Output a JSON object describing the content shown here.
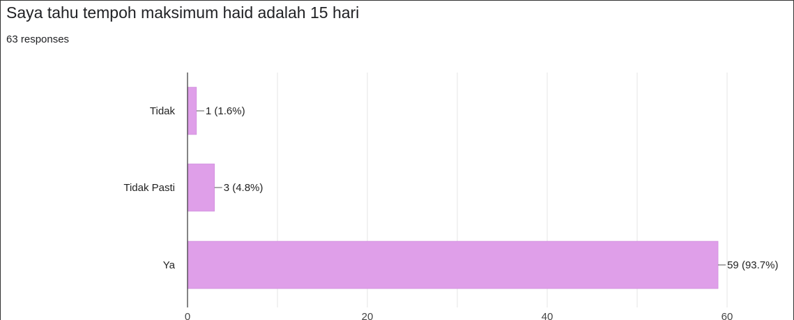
{
  "question": {
    "title": "Saya tahu tempoh maksimum haid adalah 15 hari",
    "responses": "63 responses"
  },
  "colors": {
    "bar": "#df9fe9",
    "bar_edge": "#c67fd4",
    "grid": "#e6e6e6",
    "axis": "#333333"
  },
  "chart_data": {
    "type": "bar",
    "orientation": "horizontal",
    "categories": [
      "Tidak",
      "Tidak Pasti",
      "Ya"
    ],
    "values": [
      1,
      3,
      59
    ],
    "data_labels": [
      "1 (1.6%)",
      "3 (4.8%)",
      "59 (93.7%)"
    ],
    "xlim": [
      0,
      60
    ],
    "x_ticks": [
      0,
      20,
      40,
      60
    ],
    "x_tick_labels": [
      "0",
      "20",
      "40",
      "60"
    ],
    "grid": true
  }
}
